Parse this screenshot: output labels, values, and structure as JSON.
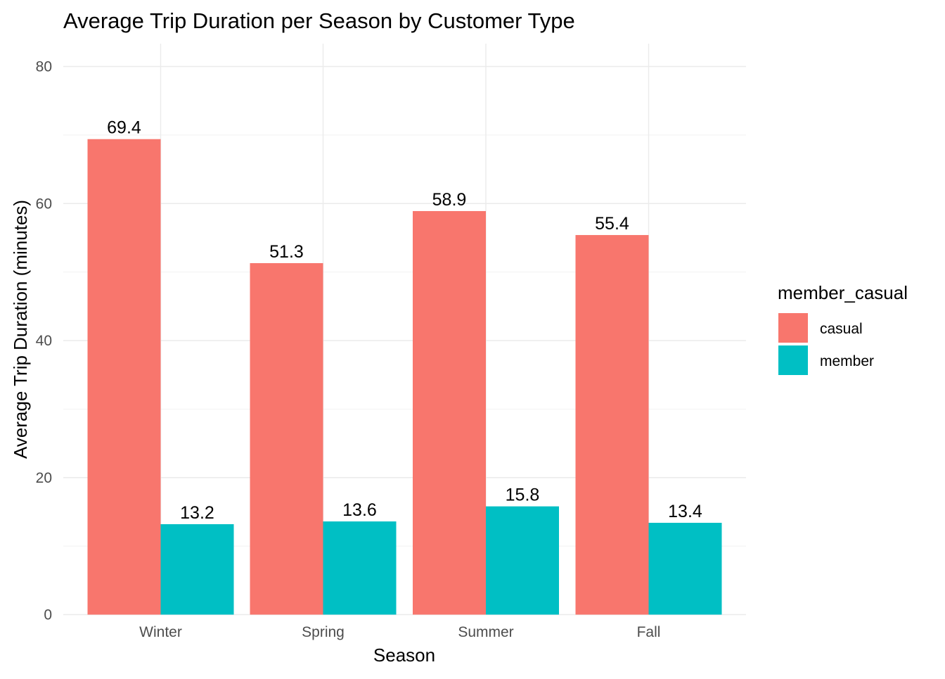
{
  "chart_data": {
    "type": "bar",
    "title": "Average Trip Duration per Season by Customer Type",
    "xlabel": "Season",
    "ylabel": "Average Trip Duration (minutes)",
    "categories": [
      "Winter",
      "Spring",
      "Summer",
      "Fall"
    ],
    "series": [
      {
        "name": "casual",
        "values": [
          69.4,
          51.3,
          58.9,
          55.4
        ],
        "labels": [
          "69.4",
          "51.3",
          "58.9",
          "55.4"
        ],
        "color": "#F8766D"
      },
      {
        "name": "member",
        "values": [
          13.2,
          13.6,
          15.8,
          13.4
        ],
        "labels": [
          "13.2",
          "13.6",
          "15.8",
          "13.4"
        ],
        "color": "#00BFC4"
      }
    ],
    "ylim": [
      0,
      80
    ],
    "yticks": [
      0,
      20,
      40,
      60,
      80
    ],
    "ytick_labels": [
      "0",
      "20",
      "40",
      "60",
      "80"
    ],
    "grid": true,
    "legend": {
      "title": "member_casual",
      "position": "right",
      "entries": [
        "casual",
        "member"
      ]
    }
  }
}
